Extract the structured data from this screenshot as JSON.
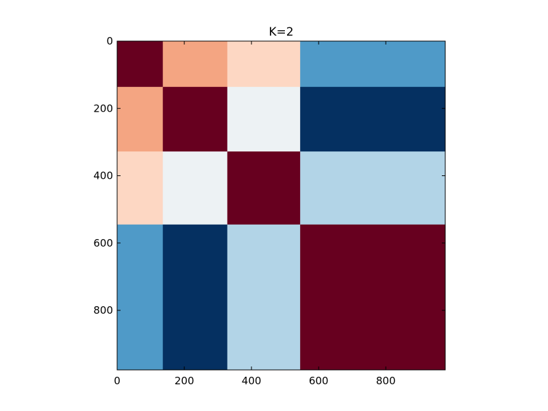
{
  "chart_data": {
    "type": "heatmap",
    "title": "K=2",
    "xlabel": "",
    "ylabel": "",
    "xlim": [
      0,
      977
    ],
    "ylim": [
      977,
      0
    ],
    "x_ticks": [
      0,
      200,
      400,
      600,
      800
    ],
    "y_ticks": [
      0,
      200,
      400,
      600,
      800
    ],
    "x_tick_labels": [
      "0",
      "200",
      "400",
      "600",
      "800"
    ],
    "y_tick_labels": [
      "0",
      "200",
      "400",
      "600",
      "800"
    ],
    "grid": false,
    "block_boundaries": [
      0,
      136,
      328,
      545,
      977
    ],
    "block_colors": [
      [
        "#67001f",
        "#f4a582",
        "#fdd7c3",
        "#4f9ac8"
      ],
      [
        "#f4a582",
        "#67001f",
        "#edf2f4",
        "#053061"
      ],
      [
        "#fdd7c3",
        "#edf2f4",
        "#67001f",
        "#b2d4e7"
      ],
      [
        "#4f9ac8",
        "#053061",
        "#b2d4e7",
        "#67001f"
      ]
    ]
  }
}
